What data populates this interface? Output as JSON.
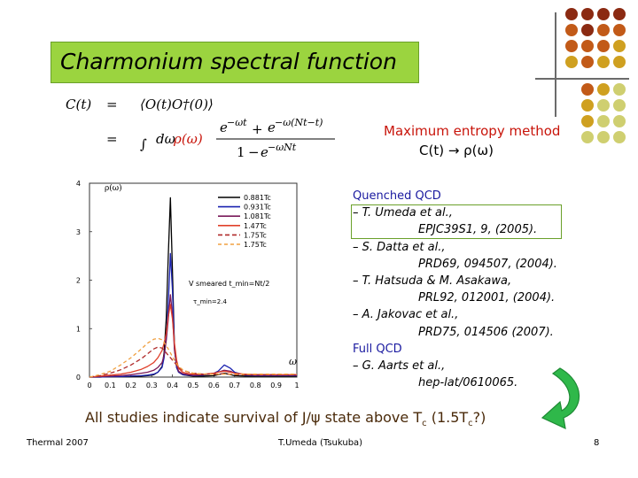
{
  "slide": {
    "title": "Charmonium spectral function",
    "formula": {
      "lhs": "C(t)",
      "eq": "=",
      "rhs1": "⟨O(t)O†(0)⟩",
      "rhs2_int": "∫",
      "rhs2_measure": "dω",
      "rhs2_rho": "ρ(ω)",
      "num_a": "e",
      "num_a_exp": "−ωt",
      "num_plus": "+",
      "num_b": "e",
      "num_b_exp": "−ω(Nt−t)",
      "den_one": "1",
      "den_minus": "−",
      "den_e": "e",
      "den_exp": "−ωNt"
    },
    "method": {
      "line1": "Maximum entropy method",
      "line2": "C(t) → ρ(ω)"
    },
    "references": [
      {
        "text": "Quenched QCD",
        "style": "h"
      },
      {
        "text": "– T. Umeda et al.,",
        "style": "it"
      },
      {
        "text": "EPJC39S1, 9, (2005).",
        "style": "it ind"
      },
      {
        "text": "– S. Datta et al.,",
        "style": "it"
      },
      {
        "text": "PRD69, 094507, (2004).",
        "style": "it ind"
      },
      {
        "text": "– T. Hatsuda & M. Asakawa,",
        "style": "it"
      },
      {
        "text": "PRL92, 012001, (2004).",
        "style": "it ind"
      },
      {
        "text": "– A. Jakovac et al.,",
        "style": "it"
      },
      {
        "text": "PRD75, 014506 (2007).",
        "style": "it ind"
      },
      {
        "text": "Full QCD",
        "style": "h"
      },
      {
        "text": "– G. Aarts et al.,",
        "style": "it"
      },
      {
        "text": "hep-lat/0610065.",
        "style": "it ind"
      }
    ],
    "conclusion": {
      "pre": "All studies indicate survival of J/ψ state above T",
      "sub1": "c",
      "mid": " (1.5T",
      "sub2": "c",
      "post": "?)"
    },
    "footer": {
      "left": "Thermal 2007",
      "center": "T.Umeda (Tsukuba)",
      "page": "8"
    }
  },
  "colors": {
    "title_bg": "#9bd43f",
    "accent_red": "#c8140a",
    "dots": [
      "#8b2a12",
      "#c25a18",
      "#cfa020",
      "#cfcf70"
    ]
  },
  "chart_data": {
    "type": "line",
    "ylabel": "ρ(ω)",
    "xlabel": "ω",
    "xlim": [
      0,
      1
    ],
    "ylim": [
      0,
      4
    ],
    "x_ticks": [
      "0",
      "0.1",
      "0.2",
      "0.3",
      "0.4",
      "0.5",
      "0.6",
      "0.7",
      "0.8",
      "0.9",
      "1"
    ],
    "y_ticks": [
      "0",
      "1",
      "2",
      "3",
      "4"
    ],
    "annotation1": "V smeared t_min=Nt/2",
    "annotation2": "τ_min=2.4",
    "x": [
      0.0,
      0.05,
      0.1,
      0.15,
      0.2,
      0.25,
      0.28,
      0.31,
      0.33,
      0.35,
      0.36,
      0.37,
      0.38,
      0.39,
      0.4,
      0.41,
      0.42,
      0.43,
      0.45,
      0.48,
      0.5,
      0.55,
      0.6,
      0.62,
      0.65,
      0.68,
      0.7,
      0.75,
      0.8,
      0.85,
      0.9,
      0.95,
      1.0
    ],
    "series": [
      {
        "name": "0.881Tc",
        "color": "#000000",
        "dash": "",
        "values": [
          0.0,
          0.0,
          0.01,
          0.01,
          0.01,
          0.02,
          0.03,
          0.05,
          0.1,
          0.22,
          0.5,
          1.2,
          2.5,
          3.7,
          2.2,
          0.6,
          0.2,
          0.1,
          0.05,
          0.03,
          0.02,
          0.02,
          0.03,
          0.05,
          0.08,
          0.05,
          0.03,
          0.02,
          0.02,
          0.02,
          0.02,
          0.02,
          0.02
        ]
      },
      {
        "name": "0.931Tc",
        "color": "#1a22b0",
        "dash": "",
        "values": [
          0.0,
          0.0,
          0.01,
          0.01,
          0.02,
          0.03,
          0.04,
          0.06,
          0.1,
          0.2,
          0.4,
          0.8,
          1.5,
          2.55,
          1.8,
          0.6,
          0.2,
          0.1,
          0.05,
          0.04,
          0.03,
          0.04,
          0.08,
          0.12,
          0.25,
          0.18,
          0.1,
          0.04,
          0.03,
          0.03,
          0.03,
          0.03,
          0.03
        ]
      },
      {
        "name": "1.081Tc",
        "color": "#7a1a5a",
        "dash": "",
        "values": [
          0.0,
          0.01,
          0.02,
          0.03,
          0.05,
          0.08,
          0.1,
          0.14,
          0.2,
          0.3,
          0.45,
          0.75,
          1.2,
          1.7,
          1.3,
          0.55,
          0.25,
          0.12,
          0.07,
          0.05,
          0.04,
          0.05,
          0.08,
          0.1,
          0.14,
          0.12,
          0.08,
          0.05,
          0.04,
          0.04,
          0.04,
          0.04,
          0.04
        ]
      },
      {
        "name": "1.47Tc",
        "color": "#e0402a",
        "dash": "",
        "values": [
          0.0,
          0.02,
          0.04,
          0.06,
          0.1,
          0.16,
          0.22,
          0.3,
          0.4,
          0.55,
          0.7,
          0.9,
          1.25,
          1.5,
          1.2,
          0.7,
          0.35,
          0.18,
          0.1,
          0.07,
          0.06,
          0.06,
          0.08,
          0.1,
          0.12,
          0.1,
          0.08,
          0.06,
          0.05,
          0.05,
          0.05,
          0.05,
          0.05
        ]
      },
      {
        "name": "1.75Tc",
        "color": "#b02a2a",
        "dash": "5,3",
        "values": [
          0.0,
          0.03,
          0.08,
          0.15,
          0.25,
          0.38,
          0.48,
          0.58,
          0.62,
          0.6,
          0.55,
          0.5,
          0.45,
          0.4,
          0.35,
          0.3,
          0.25,
          0.2,
          0.14,
          0.1,
          0.08,
          0.06,
          0.06,
          0.06,
          0.07,
          0.06,
          0.05,
          0.05,
          0.05,
          0.05,
          0.05,
          0.05,
          0.05
        ]
      },
      {
        "name": "1.75Tc",
        "color": "#f0a040",
        "dash": "4,3",
        "values": [
          0.0,
          0.05,
          0.12,
          0.25,
          0.4,
          0.58,
          0.7,
          0.78,
          0.8,
          0.77,
          0.72,
          0.65,
          0.58,
          0.5,
          0.42,
          0.35,
          0.28,
          0.22,
          0.15,
          0.1,
          0.08,
          0.06,
          0.06,
          0.06,
          0.06,
          0.06,
          0.06,
          0.06,
          0.06,
          0.06,
          0.06,
          0.06,
          0.06
        ]
      }
    ]
  }
}
